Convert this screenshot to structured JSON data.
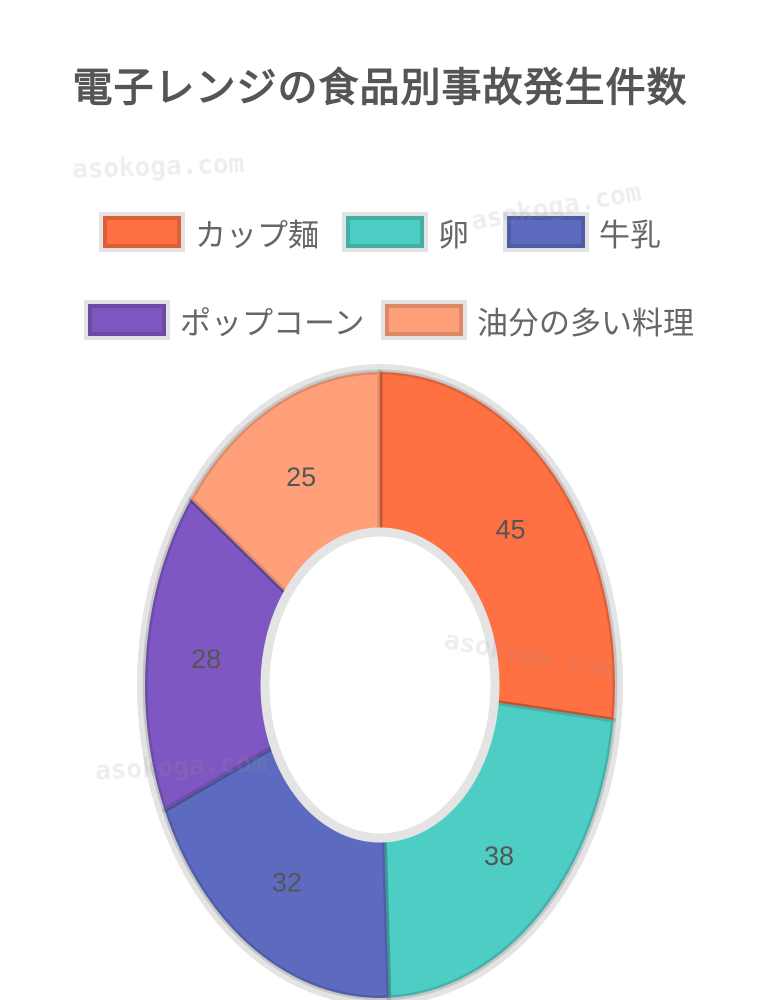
{
  "chart_data": {
    "type": "doughnut",
    "title": "電子レンジの食品別事故発生件数",
    "categories": [
      "カップ麺",
      "卵",
      "牛乳",
      "ポップコーン",
      "油分の多い料理"
    ],
    "values": [
      45,
      38,
      32,
      28,
      25
    ],
    "colors": [
      "#ff7043",
      "#4ecdc4",
      "#5c6bc0",
      "#7e57c2",
      "#ffa07a"
    ],
    "legend_position": "top",
    "show_data_labels": true
  },
  "watermark": "asokoga.com"
}
